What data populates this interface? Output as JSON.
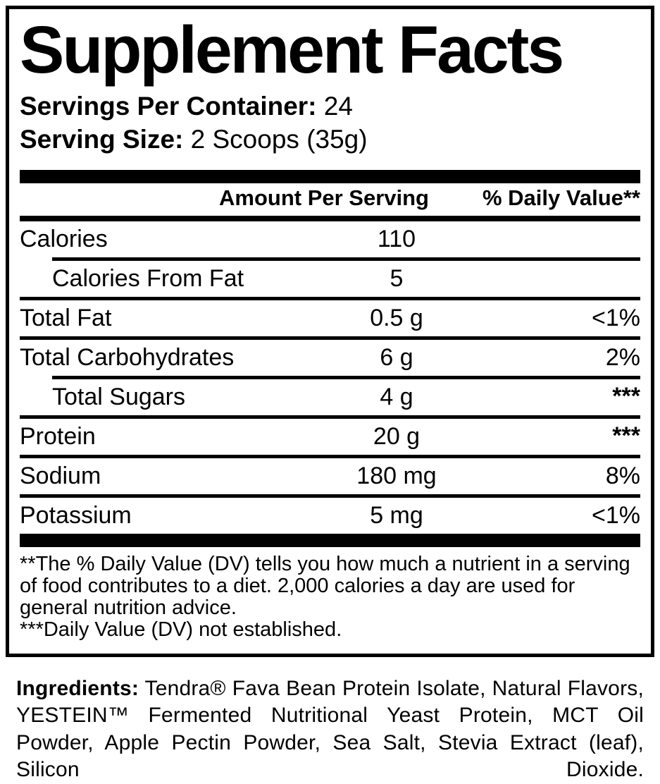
{
  "title": "Supplement Facts",
  "serving_info": {
    "servings_per_container_label": "Servings Per Container:",
    "servings_per_container_value": " 24",
    "serving_size_label": "Serving Size:",
    "serving_size_value": " 2 Scoops (35g)"
  },
  "nutrition": {
    "columns": {
      "amount": "Amount Per Serving",
      "dv": "% Daily Value**"
    },
    "rows": [
      {
        "name": "Calories",
        "amount": "110",
        "dv": "",
        "indent": false,
        "separator": "none"
      },
      {
        "name": "Calories From Fat",
        "amount": "5",
        "dv": "",
        "indent": true,
        "separator": "indented"
      },
      {
        "name": "Total Fat",
        "amount": "0.5 g",
        "dv": "<1%",
        "indent": false,
        "separator": "full"
      },
      {
        "name": "Total Carbohydrates",
        "amount": "6 g",
        "dv": "2%",
        "indent": false,
        "separator": "full"
      },
      {
        "name": "Total Sugars",
        "amount": "4 g",
        "dv": "***",
        "indent": true,
        "separator": "indented"
      },
      {
        "name": "Protein",
        "amount": "20 g",
        "dv": "***",
        "indent": false,
        "separator": "full"
      },
      {
        "name": "Sodium",
        "amount": "180 mg",
        "dv": "8%",
        "indent": false,
        "separator": "full"
      },
      {
        "name": "Potassium",
        "amount": "5 mg",
        "dv": "<1%",
        "indent": false,
        "separator": "full"
      }
    ]
  },
  "footnotes": {
    "dv_note": "**The % Daily Value (DV) tells you how much a nutrient in a serving of food contributes to a diet. 2,000 calories a day are used for general nutrition advice.",
    "not_established_note": "***Daily Value (DV) not established."
  },
  "ingredients": {
    "label": "Ingredients:",
    "text": " Tendra® Fava Bean Protein Isolate, Natural Flavors, YESTEIN™ Fermented Nutritional Yeast Protein, MCT Oil Powder, Apple Pectin Powder, Sea Salt, Stevia Extract (leaf), Silicon Dioxide."
  },
  "colors": {
    "ink": "#000000",
    "background": "#ffffff"
  }
}
